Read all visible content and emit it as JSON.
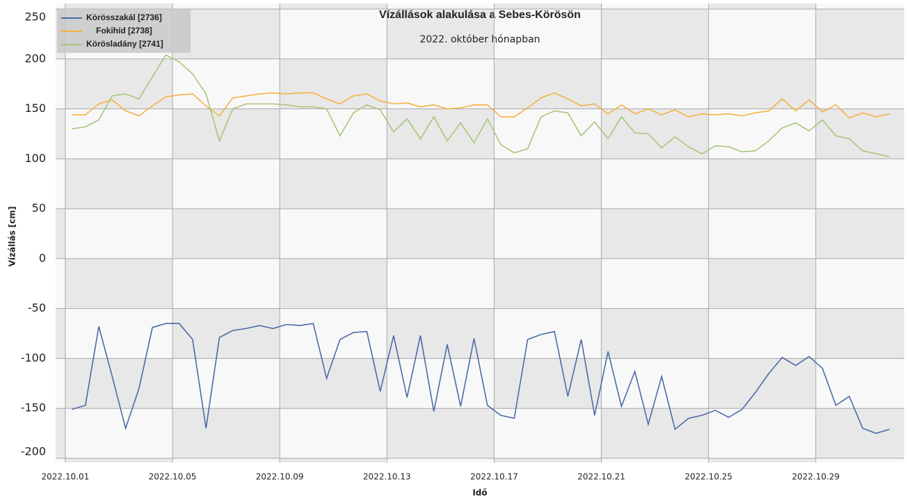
{
  "chart_data": {
    "type": "line",
    "title": "Vízállások alakulása a Sebes-Körösön",
    "subtitle": "2022. október hónapban",
    "x_label": "Idő",
    "y_label": "Vízállás [cm]",
    "x": [
      1.25,
      1.75,
      2.25,
      2.75,
      3.25,
      3.75,
      4.25,
      4.75,
      5.25,
      5.75,
      6.25,
      6.75,
      7.25,
      7.75,
      8.25,
      8.75,
      9.25,
      9.75,
      10.25,
      10.75,
      11.25,
      11.75,
      12.25,
      12.75,
      13.25,
      13.75,
      14.25,
      14.75,
      15.25,
      15.75,
      16.25,
      16.75,
      17.25,
      17.75,
      18.25,
      18.75,
      19.25,
      19.75,
      20.25,
      20.75,
      21.25,
      21.75,
      22.25,
      22.75,
      23.25,
      23.75,
      24.25,
      24.75,
      25.25,
      25.75,
      26.25,
      26.75,
      27.25,
      27.75,
      28.25,
      28.75,
      29.25,
      29.75,
      30.25,
      30.75,
      31.25,
      31.75
    ],
    "series": [
      {
        "name": "Körösszakál [2736]",
        "color": "#4a6aa8",
        "values": [
          -151,
          -147,
          -68,
          -118,
          -170,
          -130,
          -69,
          -65,
          -65,
          -81,
          -170,
          -79,
          -72,
          -70,
          -67,
          -70,
          -66,
          -67,
          -65,
          -120,
          -81,
          -74,
          -73,
          -133,
          -77,
          -139,
          -77,
          -153,
          -86,
          -148,
          -80,
          -147,
          -157,
          -160,
          -81,
          -76,
          -73,
          -138,
          -81,
          -157,
          -93,
          -148,
          -113,
          -166,
          -118,
          -171,
          -160,
          -157,
          -152,
          -159,
          -151,
          -134,
          -115,
          -99,
          -107,
          -98,
          -110,
          -147,
          -138,
          -170,
          -175,
          -171
        ]
      },
      {
        "name": "Fokihíd [2738]",
        "color": "#f5b042",
        "values": [
          144,
          144,
          155,
          159,
          148,
          143,
          153,
          162,
          164,
          165,
          153,
          143,
          161,
          163,
          165,
          166,
          165,
          166,
          166,
          160,
          155,
          163,
          165,
          158,
          155,
          156,
          152,
          154,
          150,
          151,
          154,
          154,
          142,
          142,
          151,
          161,
          166,
          160,
          153,
          155,
          145,
          154,
          145,
          150,
          144,
          149,
          142,
          145,
          144,
          145,
          143,
          146,
          148,
          160,
          148,
          159,
          147,
          154,
          141,
          146,
          142,
          145
        ]
      },
      {
        "name": "Körösladány [2741]",
        "color": "#a8c57a",
        "values": [
          130,
          132,
          139,
          163,
          165,
          160,
          182,
          204,
          197,
          185,
          165,
          118,
          150,
          155,
          155,
          155,
          154,
          152,
          152,
          150,
          123,
          146,
          154,
          149,
          127,
          140,
          120,
          142,
          118,
          136,
          116,
          140,
          114,
          106,
          110,
          142,
          148,
          146,
          123,
          137,
          120,
          142,
          126,
          125,
          111,
          122,
          112,
          105,
          113,
          112,
          107,
          108,
          118,
          131,
          136,
          128,
          139,
          123,
          120,
          108,
          105,
          102
        ]
      }
    ],
    "xlim": [
      0.64,
      32.3
    ],
    "xticks": [
      {
        "value": 1,
        "label": "2022.10.01"
      },
      {
        "value": 5,
        "label": "2022.10.05"
      },
      {
        "value": 9,
        "label": "2022.10.09"
      },
      {
        "value": 13,
        "label": "2022.10.13"
      },
      {
        "value": 17,
        "label": "2022.10.17"
      },
      {
        "value": 21,
        "label": "2022.10.21"
      },
      {
        "value": 25,
        "label": "2022.10.25"
      },
      {
        "value": 29,
        "label": "2022.10.29"
      }
    ],
    "ylim": [
      -200,
      250
    ],
    "yticks": [
      -200,
      -150,
      -100,
      -50,
      0,
      50,
      100,
      150,
      200,
      250
    ],
    "grid": true,
    "legend": "top-left"
  }
}
